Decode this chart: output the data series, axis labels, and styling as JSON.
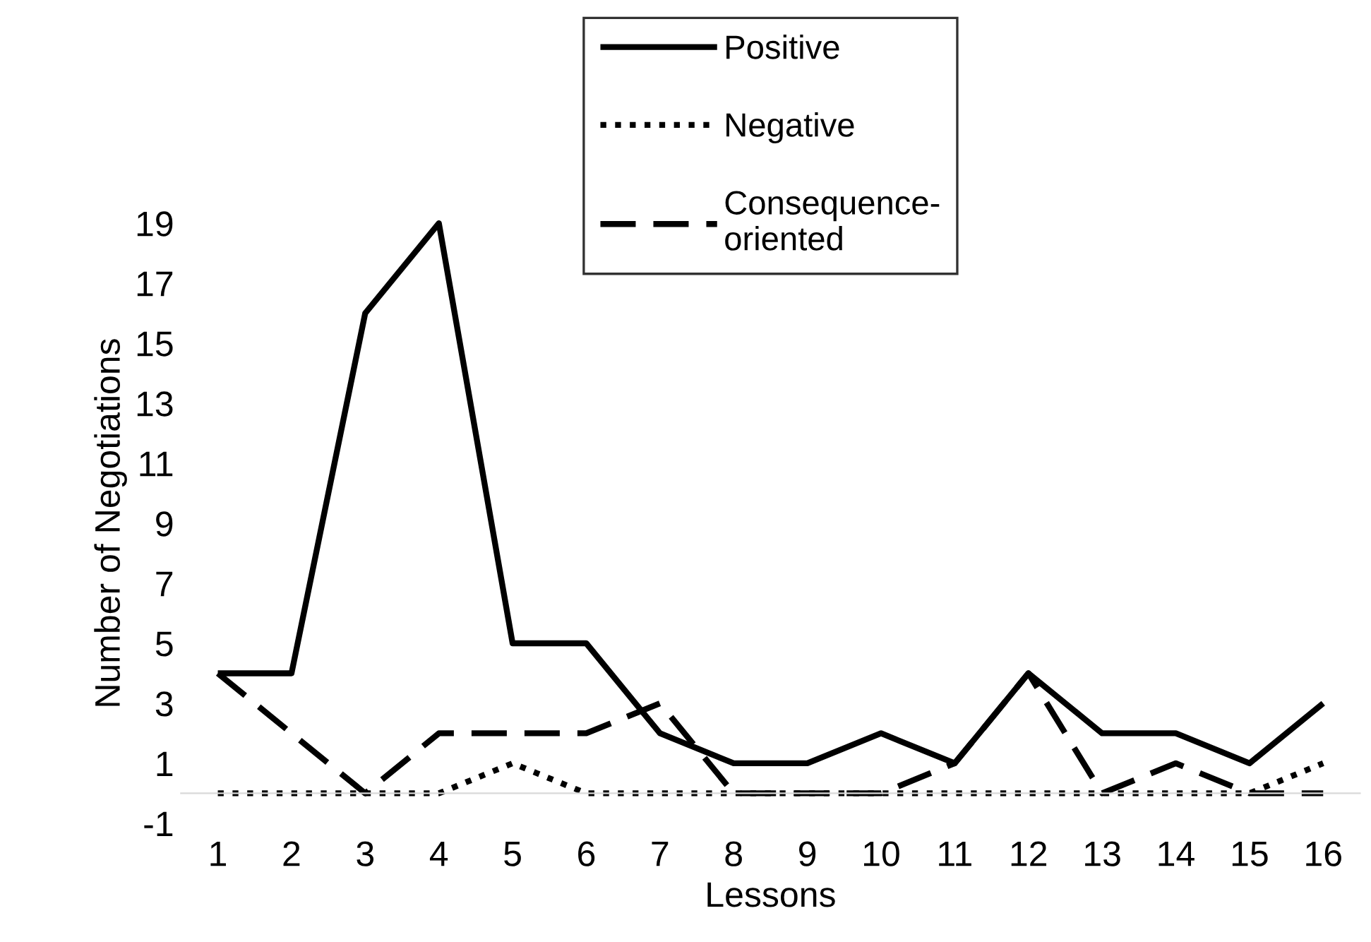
{
  "chart_data": {
    "type": "line",
    "xlabel": "Lessons",
    "ylabel": "Number of Negotiations",
    "categories": [
      "1",
      "2",
      "3",
      "4",
      "5",
      "6",
      "7",
      "8",
      "9",
      "10",
      "11",
      "12",
      "13",
      "14",
      "15",
      "16"
    ],
    "series": [
      {
        "name": "Positive",
        "color": "#000000",
        "line_style": "solid",
        "values": [
          4,
          4,
          16,
          19,
          5,
          5,
          2,
          1,
          1,
          2,
          1,
          4,
          2,
          2,
          1,
          3
        ]
      },
      {
        "name": "Negative",
        "color": "#000000",
        "line_style": "dotted",
        "values": [
          0,
          0,
          0,
          0,
          1,
          0,
          0,
          0,
          0,
          0,
          0,
          0,
          0,
          0,
          0,
          1
        ]
      },
      {
        "name": "Consequence-oriented",
        "color": "#000000",
        "line_style": "dashed",
        "values": [
          4,
          2,
          0,
          2,
          2,
          2,
          3,
          0,
          0,
          0,
          1,
          4,
          0,
          1,
          0,
          0
        ]
      }
    ],
    "ylim": [
      -1,
      19
    ],
    "yticks": [
      -1,
      1,
      3,
      5,
      7,
      9,
      11,
      13,
      15,
      17,
      19
    ],
    "grid": false,
    "legend": "top",
    "marker": "none"
  }
}
